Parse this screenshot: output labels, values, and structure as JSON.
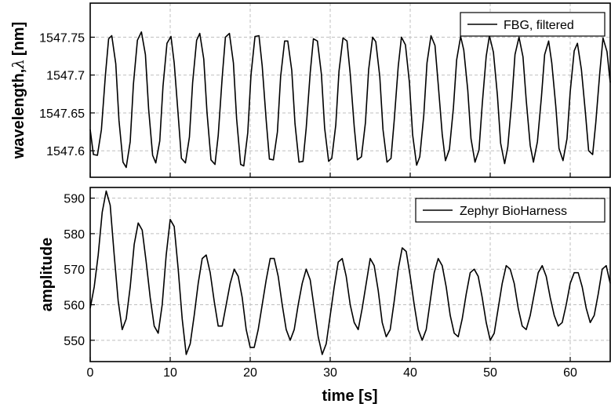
{
  "chart_data": [
    {
      "type": "line",
      "ylabel": "wavelength, λ [nm]",
      "ylabel_prefix": "wavelength,",
      "ylabel_symbol": "λ",
      "ylabel_unit": "[nm]",
      "xlim": [
        0,
        65
      ],
      "ylim": [
        1547.565,
        1547.795
      ],
      "yticks": [
        1547.6,
        1547.65,
        1547.7,
        1547.75
      ],
      "ytick_labels": [
        "1547.6",
        "1547.65",
        "1547.7",
        "1547.75"
      ],
      "xticks": [
        0,
        10,
        20,
        30,
        40,
        50,
        60
      ],
      "grid": true,
      "legend_position": "top-right",
      "series": [
        {
          "name": "FBG, filtered",
          "color": "#000000",
          "x": [
            0.0,
            0.4,
            0.9,
            1.4,
            1.9,
            2.3,
            2.7,
            3.2,
            3.6,
            4.1,
            4.5,
            5.0,
            5.4,
            5.9,
            6.4,
            6.9,
            7.3,
            7.8,
            8.2,
            8.7,
            9.1,
            9.6,
            10.1,
            10.5,
            11.0,
            11.4,
            11.9,
            12.4,
            12.8,
            13.3,
            13.7,
            14.2,
            14.6,
            15.1,
            15.6,
            16.0,
            16.5,
            16.9,
            17.4,
            17.9,
            18.3,
            18.8,
            19.2,
            19.7,
            20.1,
            20.6,
            21.1,
            21.5,
            22.0,
            22.4,
            22.9,
            23.4,
            23.8,
            24.3,
            24.7,
            25.2,
            25.6,
            26.1,
            26.6,
            27.0,
            27.5,
            27.9,
            28.4,
            28.9,
            29.3,
            29.8,
            30.2,
            30.7,
            31.1,
            31.6,
            32.1,
            32.5,
            33.0,
            33.4,
            33.9,
            34.4,
            34.8,
            35.3,
            35.7,
            36.2,
            36.6,
            37.1,
            37.6,
            38.0,
            38.5,
            38.9,
            39.4,
            39.9,
            40.3,
            40.8,
            41.2,
            41.7,
            42.1,
            42.6,
            43.1,
            43.5,
            44.0,
            44.4,
            44.9,
            45.4,
            45.8,
            46.3,
            46.7,
            47.2,
            47.6,
            48.1,
            48.6,
            49.0,
            49.5,
            49.9,
            50.4,
            50.9,
            51.3,
            51.8,
            52.2,
            52.7,
            53.1,
            53.6,
            54.1,
            54.5,
            55.0,
            55.4,
            55.9,
            56.4,
            56.8,
            57.3,
            57.7,
            58.2,
            58.6,
            59.1,
            59.6,
            60.0,
            60.5,
            60.9,
            61.4,
            61.9,
            62.3,
            62.8,
            63.2,
            63.7,
            64.1,
            64.6,
            65.0
          ],
          "y": [
            1547.628,
            1547.595,
            1547.594,
            1547.628,
            1547.7,
            1547.748,
            1547.752,
            1547.715,
            1547.64,
            1547.585,
            1547.578,
            1547.612,
            1547.688,
            1547.746,
            1547.757,
            1547.727,
            1547.655,
            1547.594,
            1547.584,
            1547.613,
            1547.685,
            1547.742,
            1547.751,
            1547.716,
            1547.647,
            1547.59,
            1547.584,
            1547.618,
            1547.69,
            1547.746,
            1547.755,
            1547.721,
            1547.651,
            1547.588,
            1547.582,
            1547.62,
            1547.697,
            1547.75,
            1547.755,
            1547.716,
            1547.642,
            1547.582,
            1547.58,
            1547.624,
            1547.7,
            1547.751,
            1547.752,
            1547.712,
            1547.64,
            1547.589,
            1547.588,
            1547.625,
            1547.698,
            1547.745,
            1547.745,
            1547.706,
            1547.636,
            1547.585,
            1547.586,
            1547.63,
            1547.703,
            1547.748,
            1547.745,
            1547.701,
            1547.63,
            1547.586,
            1547.59,
            1547.634,
            1547.705,
            1547.749,
            1547.745,
            1547.702,
            1547.632,
            1547.588,
            1547.592,
            1547.637,
            1547.707,
            1547.75,
            1547.744,
            1547.698,
            1547.628,
            1547.585,
            1547.59,
            1547.64,
            1547.711,
            1547.75,
            1547.74,
            1547.69,
            1547.621,
            1547.581,
            1547.592,
            1547.647,
            1547.716,
            1547.752,
            1547.739,
            1547.688,
            1547.622,
            1547.587,
            1547.602,
            1547.657,
            1547.72,
            1547.751,
            1547.733,
            1547.68,
            1547.616,
            1547.585,
            1547.601,
            1547.661,
            1547.725,
            1547.752,
            1547.73,
            1547.673,
            1547.61,
            1547.583,
            1547.605,
            1547.666,
            1547.727,
            1547.75,
            1547.724,
            1547.667,
            1547.607,
            1547.585,
            1547.612,
            1547.671,
            1547.727,
            1547.745,
            1547.716,
            1547.659,
            1547.603,
            1547.587,
            1547.616,
            1547.678,
            1547.732,
            1547.742,
            1547.707,
            1547.65,
            1547.6,
            1547.595,
            1547.637,
            1547.703,
            1547.749,
            1547.731,
            1547.69
          ]
        }
      ]
    },
    {
      "type": "line",
      "xlabel": "time [s]",
      "ylabel": "amplitude",
      "xlim": [
        0,
        65
      ],
      "ylim": [
        544,
        593
      ],
      "yticks": [
        550,
        560,
        570,
        580,
        590
      ],
      "xticks": [
        0,
        10,
        20,
        30,
        40,
        50,
        60
      ],
      "grid": true,
      "legend_position": "top-right",
      "series": [
        {
          "name": "Zephyr BioHarness",
          "color": "#000000",
          "x": [
            0.0,
            0.5,
            1.0,
            1.5,
            2.0,
            2.5,
            3.0,
            3.5,
            4.0,
            4.5,
            5.0,
            5.5,
            6.0,
            6.5,
            7.0,
            7.5,
            8.0,
            8.5,
            9.0,
            9.5,
            10.0,
            10.5,
            11.0,
            11.5,
            12.0,
            12.5,
            13.0,
            13.5,
            14.0,
            14.5,
            15.0,
            15.5,
            16.0,
            16.5,
            17.0,
            17.5,
            18.0,
            18.5,
            19.0,
            19.5,
            20.0,
            20.5,
            21.0,
            21.5,
            22.0,
            22.5,
            23.0,
            23.5,
            24.0,
            24.5,
            25.0,
            25.5,
            26.0,
            26.5,
            27.0,
            27.5,
            28.0,
            28.5,
            29.0,
            29.5,
            30.0,
            30.5,
            31.0,
            31.5,
            32.0,
            32.5,
            33.0,
            33.5,
            34.0,
            34.5,
            35.0,
            35.5,
            36.0,
            36.5,
            37.0,
            37.5,
            38.0,
            38.5,
            39.0,
            39.5,
            40.0,
            40.5,
            41.0,
            41.5,
            42.0,
            42.5,
            43.0,
            43.5,
            44.0,
            44.5,
            45.0,
            45.5,
            46.0,
            46.5,
            47.0,
            47.5,
            48.0,
            48.5,
            49.0,
            49.5,
            50.0,
            50.5,
            51.0,
            51.5,
            52.0,
            52.5,
            53.0,
            53.5,
            54.0,
            54.5,
            55.0,
            55.5,
            56.0,
            56.5,
            57.0,
            57.5,
            58.0,
            58.5,
            59.0,
            59.5,
            60.0,
            60.5,
            61.0,
            61.5,
            62.0,
            62.5,
            63.0,
            63.5,
            64.0,
            64.5,
            65.0
          ],
          "y": [
            559,
            565,
            574,
            586,
            592,
            588,
            574,
            561,
            553,
            556,
            565,
            577,
            583,
            581,
            572,
            562,
            554,
            552,
            560,
            574,
            584,
            582,
            570,
            556,
            546,
            549,
            557,
            566,
            573,
            574,
            569,
            561,
            554,
            554,
            560,
            566,
            570,
            568,
            562,
            553,
            548,
            548,
            553,
            560,
            567,
            573,
            573,
            568,
            560,
            553,
            550,
            553,
            560,
            566,
            570,
            567,
            559,
            551,
            546,
            549,
            557,
            565,
            572,
            573,
            568,
            560,
            555,
            553,
            559,
            566,
            573,
            571,
            564,
            555,
            551,
            553,
            561,
            570,
            576,
            575,
            568,
            560,
            553,
            550,
            553,
            561,
            569,
            573,
            571,
            565,
            557,
            552,
            551,
            556,
            563,
            569,
            570,
            568,
            562,
            555,
            550,
            552,
            559,
            566,
            571,
            570,
            566,
            559,
            554,
            553,
            557,
            563,
            569,
            571,
            568,
            562,
            557,
            554,
            555,
            560,
            566,
            569,
            569,
            565,
            559,
            555,
            557,
            563,
            570,
            571,
            566
          ]
        }
      ]
    }
  ]
}
